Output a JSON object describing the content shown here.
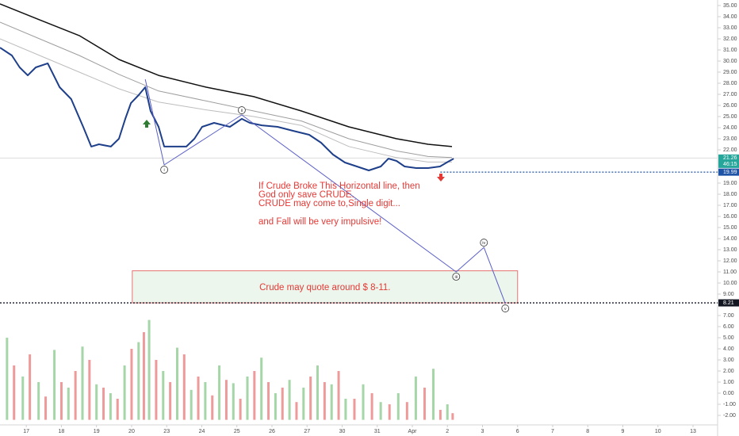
{
  "chart_data": [
    {
      "type": "line",
      "xlim": [
        -0.75,
        19.7
      ],
      "xticks": [
        {
          "value": 0,
          "label": "17"
        },
        {
          "value": 1,
          "label": "18"
        },
        {
          "value": 2,
          "label": "19"
        },
        {
          "value": 3,
          "label": "20"
        },
        {
          "value": 4,
          "label": "23"
        },
        {
          "value": 5,
          "label": "24"
        },
        {
          "value": 6,
          "label": "25"
        },
        {
          "value": 7,
          "label": "26"
        },
        {
          "value": 8,
          "label": "27"
        },
        {
          "value": 9,
          "label": "30"
        },
        {
          "value": 10,
          "label": "31"
        },
        {
          "value": 11,
          "label": "Apr"
        },
        {
          "value": 12,
          "label": "2"
        },
        {
          "value": 13,
          "label": "3"
        },
        {
          "value": 14,
          "label": "6"
        },
        {
          "value": 15,
          "label": "7"
        },
        {
          "value": 16,
          "label": "8"
        },
        {
          "value": 17,
          "label": "9"
        },
        {
          "value": 18,
          "label": "10"
        },
        {
          "value": 19,
          "label": "13"
        }
      ],
      "ylim": [
        7.6,
        35.4
      ],
      "yticks": [
        {
          "value": 35,
          "label": "35.00"
        },
        {
          "value": 34,
          "label": "34.00"
        },
        {
          "value": 33,
          "label": "33.00"
        },
        {
          "value": 32,
          "label": "32.00"
        },
        {
          "value": 31,
          "label": "31.00"
        },
        {
          "value": 30,
          "label": "30.00"
        },
        {
          "value": 29,
          "label": "29.00"
        },
        {
          "value": 28,
          "label": "28.00"
        },
        {
          "value": 27,
          "label": "27.00"
        },
        {
          "value": 26,
          "label": "26.00"
        },
        {
          "value": 25,
          "label": "25.00"
        },
        {
          "value": 24,
          "label": "24.00"
        },
        {
          "value": 23,
          "label": "23.00"
        },
        {
          "value": 22,
          "label": "22.00"
        },
        {
          "value": 19,
          "label": "19.00"
        },
        {
          "value": 18,
          "label": "18.00"
        },
        {
          "value": 17,
          "label": "17.00"
        },
        {
          "value": 16,
          "label": "16.00"
        },
        {
          "value": 15,
          "label": "15.00"
        },
        {
          "value": 14,
          "label": "14.00"
        },
        {
          "value": 13,
          "label": "13.00"
        },
        {
          "value": 12,
          "label": "12.00"
        },
        {
          "value": 11,
          "label": "11.00"
        },
        {
          "value": 10,
          "label": "10.00"
        },
        {
          "value": 9,
          "label": "9.00"
        }
      ],
      "series": [
        {
          "color": "#1e3f8a",
          "width": 2,
          "x": [
            -0.75,
            -0.41,
            -0.19,
            0.04,
            0.27,
            0.61,
            0.95,
            1.28,
            1.62,
            1.85,
            2.07,
            2.41,
            2.64,
            2.82,
            2.98,
            3.2,
            3.39,
            3.54,
            3.77,
            3.93,
            4.22,
            4.56,
            4.79,
            5.01,
            5.35,
            5.8,
            6.14,
            6.37,
            6.71,
            7.16,
            7.61,
            8.06,
            8.4,
            8.74,
            9.08,
            9.42,
            9.76,
            10.1,
            10.32,
            10.55,
            10.78,
            11.11,
            11.45,
            11.79,
            12.02,
            12.18
          ],
          "values": [
            31.21,
            30.5,
            29.43,
            28.71,
            29.43,
            29.79,
            27.64,
            26.57,
            24.07,
            22.29,
            22.5,
            22.29,
            23.0,
            24.79,
            26.21,
            26.93,
            27.64,
            25.5,
            24.07,
            22.29,
            22.29,
            22.29,
            23.0,
            24.07,
            24.43,
            24.07,
            24.79,
            24.43,
            24.21,
            24.07,
            23.71,
            23.36,
            22.64,
            21.57,
            20.86,
            20.5,
            20.14,
            20.5,
            21.21,
            21.0,
            20.5,
            20.36,
            20.36,
            20.5,
            20.93,
            21.21
          ]
        },
        {
          "color": "#111111",
          "width": 1.5,
          "x": [
            -0.75,
            0.38,
            1.51,
            2.64,
            3.77,
            5.13,
            6.48,
            7.84,
            9.19,
            10.55,
            11.45,
            12.13
          ],
          "values": [
            35.14,
            33.71,
            32.29,
            30.14,
            28.71,
            27.64,
            26.79,
            25.5,
            24.07,
            23.0,
            22.5,
            22.29
          ]
        },
        {
          "color": "#9e9e9e",
          "width": 1,
          "x": [
            -0.75,
            0.38,
            1.51,
            2.64,
            3.77,
            5.13,
            6.48,
            7.84,
            9.19,
            10.55,
            11.45,
            12.13
          ],
          "values": [
            33.5,
            32.0,
            30.5,
            28.8,
            27.3,
            26.4,
            25.5,
            24.6,
            23.0,
            21.9,
            21.4,
            21.3
          ]
        },
        {
          "color": "#bdbdbd",
          "width": 1,
          "x": [
            -0.75,
            0.38,
            1.51,
            2.64,
            3.77,
            5.13,
            6.48,
            7.84,
            9.19,
            10.55,
            11.45,
            12.13
          ],
          "values": [
            32.0,
            30.5,
            29.0,
            27.5,
            26.3,
            25.6,
            25.0,
            24.2,
            22.3,
            21.3,
            20.9,
            20.9
          ]
        }
      ],
      "waves": {
        "color": "#5b5fc7",
        "x": [
          3.39,
          3.93,
          6.14,
          12.25,
          13.04,
          13.65
        ],
        "values": [
          28.36,
          20.64,
          25.14,
          11.0,
          13.21,
          8.14
        ],
        "labels": [
          "i",
          "ii",
          "iii",
          "iv",
          "v"
        ]
      },
      "levels": [
        {
          "value": 19.99,
          "label": "19.99",
          "color": "#1e53a5",
          "from": 11.8
        },
        {
          "value": 8.21,
          "label": "8.21",
          "color": "#131722",
          "from": -0.75
        }
      ],
      "last_price": {
        "value": 21.26,
        "label": "21.26",
        "color": "#26a69a"
      },
      "countdown": "46:15",
      "zone": {
        "xlim": [
          3.02,
          14.0
        ],
        "ylim": [
          8.21,
          11.1
        ],
        "text": "Crude may quote around $ 8-11."
      },
      "annotation": [
        "If Crude Broke This Horizontal line, then",
        "God only save CRUDE.",
        "CRUDE may come to,Single digit...",
        "and Fall will be very impulsive!"
      ]
    },
    {
      "type": "bar",
      "ylim": [
        -2.4,
        7.3
      ],
      "yticks": [
        {
          "value": 7,
          "label": "7.00"
        },
        {
          "value": 6,
          "label": "6.00"
        },
        {
          "value": 5,
          "label": "5.00"
        },
        {
          "value": 4,
          "label": "4.00"
        },
        {
          "value": 3,
          "label": "3.00"
        },
        {
          "value": 2,
          "label": "2.00"
        },
        {
          "value": 1,
          "label": "1.00"
        },
        {
          "value": 0,
          "label": "0.00"
        },
        {
          "value": -1,
          "label": "-1.00"
        },
        {
          "value": -2,
          "label": "-2.00"
        }
      ],
      "series": [
        {
          "color": "#a5d6a7",
          "x": [
            -0.55,
            -0.1,
            0.35,
            0.8,
            1.2,
            1.6,
            2.0,
            2.4,
            2.8,
            3.2,
            3.5,
            3.9,
            4.3,
            4.7,
            5.1,
            5.5,
            5.9,
            6.3,
            6.7,
            7.1,
            7.5,
            7.9,
            8.3,
            8.7,
            9.1,
            9.6,
            10.1,
            10.6,
            11.1,
            11.6,
            12.0
          ],
          "values": [
            5.0,
            1.5,
            1.0,
            3.9,
            0.5,
            4.2,
            0.8,
            0.0,
            2.5,
            4.6,
            6.6,
            2.0,
            4.1,
            0.3,
            1.0,
            2.5,
            0.9,
            1.5,
            3.2,
            0.0,
            1.2,
            0.5,
            2.5,
            0.8,
            -0.5,
            0.8,
            -0.8,
            0.0,
            1.5,
            2.2,
            -1.0
          ]
        },
        {
          "color": "#ef9a9a",
          "x": [
            -0.35,
            0.1,
            0.55,
            1.0,
            1.4,
            1.8,
            2.2,
            2.6,
            3.0,
            3.35,
            3.7,
            4.1,
            4.5,
            4.9,
            5.3,
            5.7,
            6.1,
            6.5,
            6.9,
            7.3,
            7.7,
            8.1,
            8.5,
            8.9,
            9.35,
            9.85,
            10.35,
            10.85,
            11.35,
            11.8,
            12.15
          ],
          "values": [
            2.5,
            3.5,
            -0.3,
            1.0,
            2.0,
            3.0,
            0.5,
            -0.5,
            4.0,
            5.5,
            3.0,
            1.0,
            3.5,
            1.5,
            -0.2,
            1.2,
            -0.5,
            2.0,
            1.0,
            0.5,
            -0.8,
            1.5,
            1.0,
            2.0,
            -0.5,
            0.0,
            -1.0,
            -0.8,
            0.5,
            -1.5,
            -1.8
          ]
        }
      ]
    }
  ]
}
